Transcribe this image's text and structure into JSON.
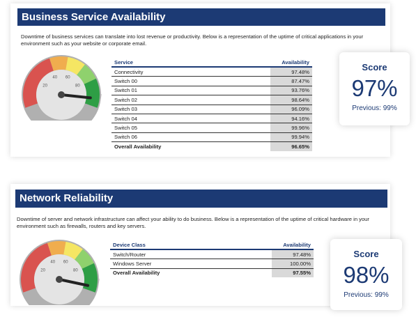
{
  "sections": [
    {
      "title": "Business Service Availability",
      "description": "Downtime of business services can translate into lost revenue or productivity. Below is a representation of the uptime of critical applications in your environment such as your website or corporate email.",
      "gauge_ticks": [
        "20",
        "40",
        "60",
        "80"
      ],
      "table": {
        "header": [
          "Service",
          "Availability"
        ],
        "rows": [
          [
            "Connectivity",
            "97.48%"
          ],
          [
            "Switch 00",
            "87.47%"
          ],
          [
            "Switch 01",
            "93.76%"
          ],
          [
            "Switch 02",
            "98.64%"
          ],
          [
            "Switch 03",
            "96.09%"
          ],
          [
            "Switch 04",
            "94.16%"
          ],
          [
            "Switch 05",
            "99.96%"
          ],
          [
            "Switch 06",
            "99.94%"
          ]
        ],
        "total": [
          "Overall Availability",
          "96.65%"
        ]
      },
      "score": {
        "label": "Score",
        "value": "97%",
        "previous": "Previous: 99%"
      }
    },
    {
      "title": "Network Reliability",
      "description": "Downtime of server and network infrastructure can affect your ability to do business. Below is a representation of the uptime of critical hardware in your environment such as firewalls, routers and key servers.",
      "gauge_ticks": [
        "20",
        "40",
        "60",
        "80"
      ],
      "table": {
        "header": [
          "Device Class",
          "Availability"
        ],
        "rows": [
          [
            "Switch/Router",
            "97.48%"
          ],
          [
            "Windows Server",
            "100.00%"
          ]
        ],
        "total": [
          "Overall Availability",
          "97.55%"
        ]
      },
      "score": {
        "label": "Score",
        "value": "98%",
        "previous": "Previous: 99%"
      }
    }
  ]
}
